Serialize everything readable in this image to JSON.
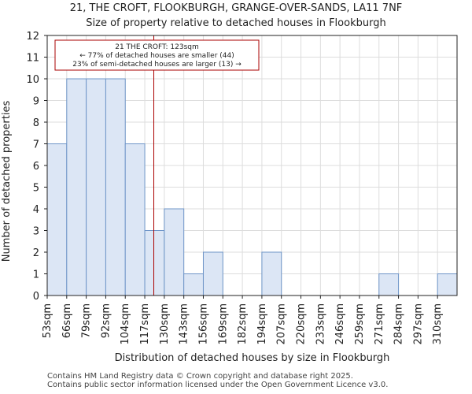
{
  "chart_data": {
    "type": "bar",
    "title": "21, THE CROFT, FLOOKBURGH, GRANGE-OVER-SANDS, LA11 7NF",
    "subtitle": "Size of property relative to detached houses in Flookburgh",
    "xlabel": "Distribution of detached houses by size in Flookburgh",
    "ylabel": "Number of detached properties",
    "categories": [
      "53sqm",
      "66sqm",
      "79sqm",
      "92sqm",
      "104sqm",
      "117sqm",
      "130sqm",
      "143sqm",
      "156sqm",
      "169sqm",
      "182sqm",
      "194sqm",
      "207sqm",
      "220sqm",
      "233sqm",
      "246sqm",
      "259sqm",
      "271sqm",
      "284sqm",
      "297sqm",
      "310sqm"
    ],
    "values": [
      7,
      10,
      10,
      10,
      7,
      3,
      4,
      1,
      2,
      0,
      0,
      2,
      0,
      0,
      0,
      0,
      0,
      1,
      0,
      0,
      1
    ],
    "ylim": [
      0,
      12
    ],
    "yticks": [
      0,
      1,
      2,
      3,
      4,
      5,
      6,
      7,
      8,
      9,
      10,
      11,
      12
    ],
    "grid": true,
    "marker": {
      "value_sqm": 123,
      "color": "#aa0000"
    },
    "annotation": {
      "line1": "21 THE CROFT: 123sqm",
      "line2": "← 77% of detached houses are smaller (44)",
      "line3": "23% of semi-detached houses are larger (13) →"
    },
    "colors": {
      "bar_fill": "#dce6f5",
      "bar_stroke": "#6f95c8",
      "grid": "#dddddd",
      "marker": "#aa0000"
    }
  },
  "footer": {
    "line1": "Contains HM Land Registry data © Crown copyright and database right 2025.",
    "line2": "Contains public sector information licensed under the Open Government Licence v3.0."
  }
}
